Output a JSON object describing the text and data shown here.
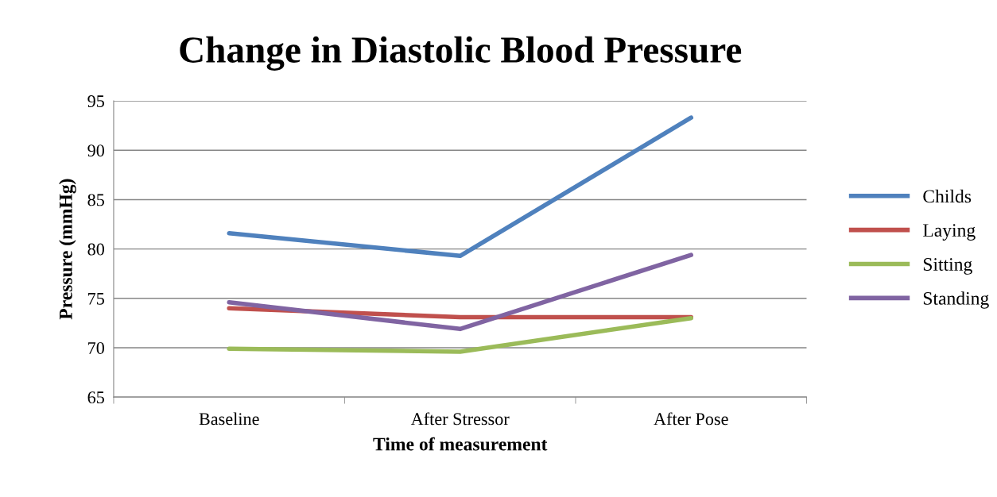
{
  "chart_data": {
    "type": "line",
    "title": "Change in Diastolic Blood Pressure",
    "xlabel": "Time of measurement",
    "ylabel": "Pressure (mmHg)",
    "categories": [
      "Baseline",
      "After Stressor",
      "After Pose"
    ],
    "series": [
      {
        "name": "Childs",
        "color": "#4f81bd",
        "values": [
          81.6,
          79.3,
          93.3
        ]
      },
      {
        "name": "Laying",
        "color": "#c0504d",
        "values": [
          74.0,
          73.1,
          73.1
        ]
      },
      {
        "name": "Sitting",
        "color": "#9bbb59",
        "values": [
          69.9,
          69.6,
          73.0
        ]
      },
      {
        "name": "Standing",
        "color": "#8064a2",
        "values": [
          74.6,
          71.9,
          79.4
        ]
      }
    ],
    "ylim": [
      65,
      95
    ],
    "yticks": [
      65,
      70,
      75,
      80,
      85,
      90,
      95
    ],
    "grid": "y",
    "legend": "right",
    "marker": "none",
    "line_style": "solid"
  }
}
